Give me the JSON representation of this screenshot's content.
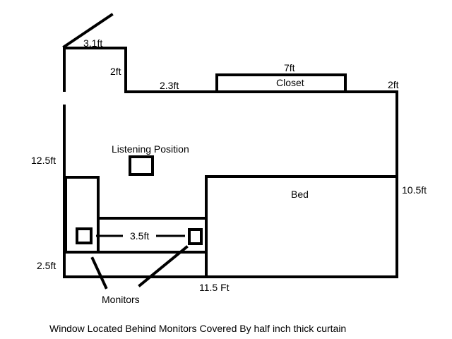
{
  "labels": {
    "wall_top_left": "3.1ft",
    "wall_step": "2ft",
    "wall_top_mid": "2.3ft",
    "closet_width": "7ft",
    "closet": "Closet",
    "wall_top_right": "2ft",
    "left_wall": "12.5ft",
    "listening_position": "Listening Position",
    "right_wall": "10.5ft",
    "bed": "Bed",
    "monitor_spacing": "3.5ft",
    "bottom_left": "2.5ft",
    "bottom_wall": "11.5 Ft",
    "monitors": "Monitors"
  },
  "caption": "Window Located Behind Monitors Covered By half inch thick curtain"
}
